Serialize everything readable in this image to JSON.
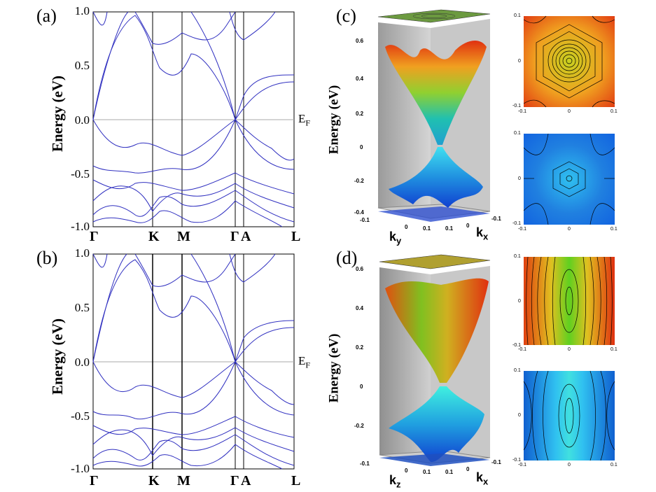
{
  "panels": {
    "a": "(a)",
    "b": "(b)",
    "c": "(c)",
    "d": "(d)"
  },
  "band_axis": {
    "ylabel": "Energy (eV)",
    "yticks": [
      "1.0",
      "0.5",
      "0.0",
      "-0.5",
      "-1.0"
    ],
    "kpoints": [
      "Γ",
      "K",
      "M",
      "Γ",
      "A",
      "L"
    ],
    "fermi_label": "E",
    "fermi_sub": "F"
  },
  "surface3d_c": {
    "ylabel": "Energy (eV)",
    "zticks": [
      "0.6",
      "0.4",
      "0.2",
      "0",
      "-0.2",
      "-0.4"
    ],
    "axis1": "k",
    "axis1_sub": "y",
    "axis2": "k",
    "axis2_sub": "x",
    "base_ticks": [
      "-0.1",
      "0",
      "0.1",
      "0.1",
      "0",
      "-0.1"
    ]
  },
  "surface3d_d": {
    "ylabel": "Energy (eV)",
    "zticks": [
      "0.6",
      "0.4",
      "0.2",
      "0",
      "-0.2"
    ],
    "axis1": "k",
    "axis1_sub": "z",
    "axis2": "k",
    "axis2_sub": "x",
    "base_ticks": [
      "-0.1",
      "0",
      "0.1",
      "0.1",
      "0",
      "-0.1"
    ]
  },
  "contour_ticks": {
    "x": [
      "-0.1",
      "0",
      "0.1"
    ],
    "y": [
      "0.1",
      "0",
      "-0.1"
    ]
  },
  "colors": {
    "band": "#3030c0",
    "fermi": "#aaaaaa"
  }
}
